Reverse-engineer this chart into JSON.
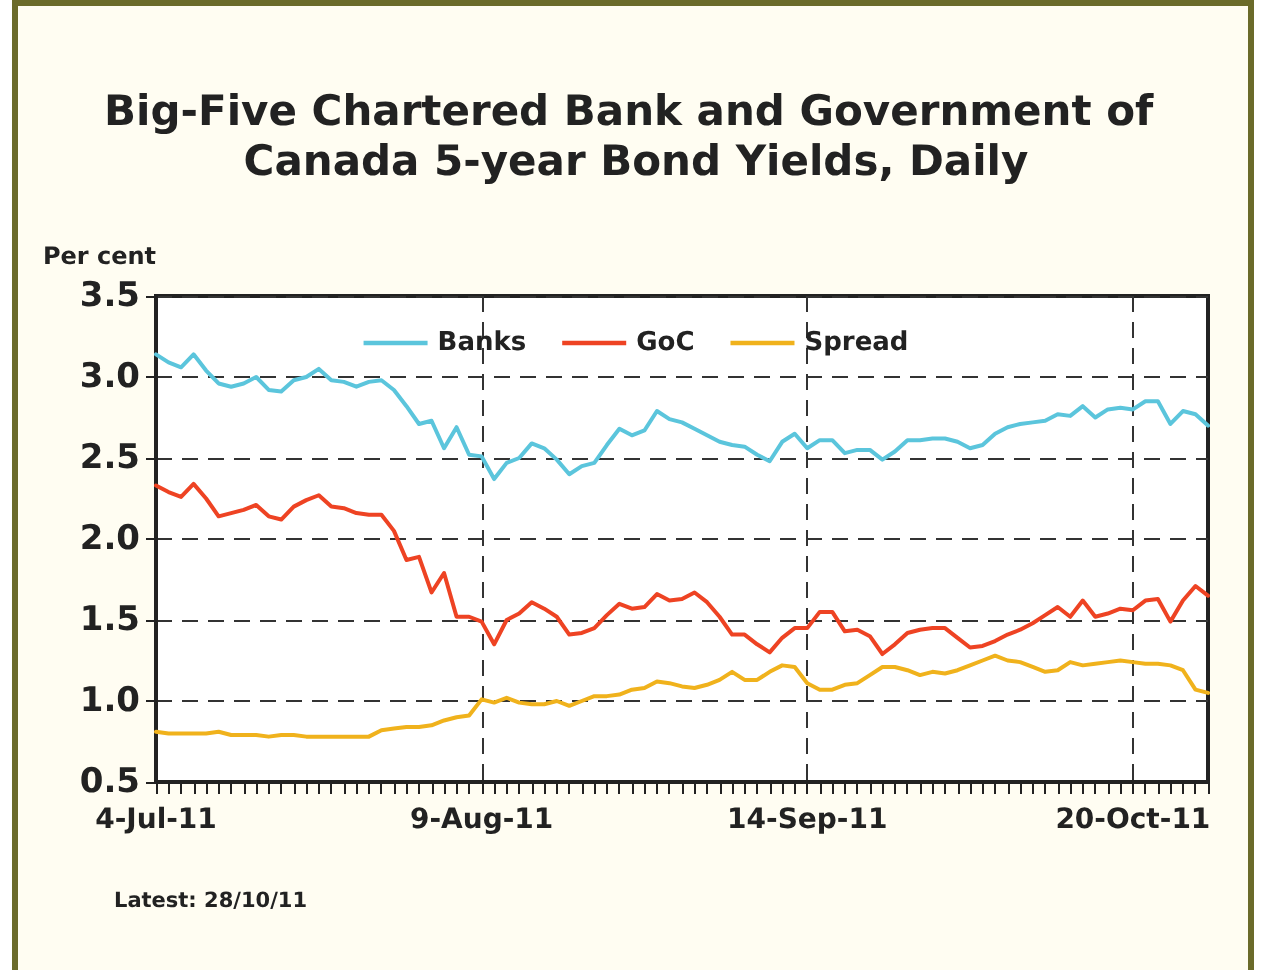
{
  "chart_data": {
    "type": "line",
    "title": "Big-Five Chartered Bank and Government of Canada 5-year Bond Yields, Daily",
    "ylabel": "Per cent",
    "annotations": [
      "Latest: 28/10/11"
    ],
    "categories": [
      "4-Jul-11",
      null,
      null,
      null,
      null,
      null,
      null,
      null,
      null,
      null,
      null,
      null,
      null,
      null,
      null,
      null,
      null,
      null,
      null,
      null,
      null,
      null,
      null,
      null,
      null,
      null,
      "9-Aug-11",
      null,
      null,
      null,
      null,
      null,
      null,
      null,
      null,
      null,
      null,
      null,
      null,
      null,
      null,
      null,
      null,
      null,
      null,
      null,
      null,
      null,
      null,
      null,
      null,
      null,
      "14-Sep-11",
      null,
      null,
      null,
      null,
      null,
      null,
      null,
      null,
      null,
      null,
      null,
      null,
      null,
      null,
      null,
      null,
      null,
      null,
      null,
      null,
      null,
      null,
      null,
      null,
      null,
      "20-Oct-11",
      null,
      null,
      null,
      null,
      null,
      null
    ],
    "series": [
      {
        "name": "Banks",
        "color": "#5bc5dc",
        "values": [
          3.14,
          3.09,
          3.06,
          3.14,
          3.04,
          2.96,
          2.94,
          2.96,
          3.0,
          2.92,
          2.91,
          2.98,
          3.0,
          3.05,
          2.98,
          2.97,
          2.94,
          2.97,
          2.98,
          2.92,
          2.82,
          2.71,
          2.73,
          2.56,
          2.69,
          2.52,
          2.51,
          2.37,
          2.47,
          2.5,
          2.59,
          2.56,
          2.49,
          2.4,
          2.45,
          2.47,
          2.58,
          2.68,
          2.64,
          2.67,
          2.79,
          2.74,
          2.72,
          2.68,
          2.64,
          2.6,
          2.58,
          2.57,
          2.52,
          2.48,
          2.6,
          2.65,
          2.56,
          2.61,
          2.61,
          2.53,
          2.55,
          2.55,
          2.49,
          2.54,
          2.61,
          2.61,
          2.62,
          2.62,
          2.6,
          2.56,
          2.58,
          2.65,
          2.69,
          2.71,
          2.72,
          2.73,
          2.77,
          2.76,
          2.82,
          2.75,
          2.8,
          2.81,
          2.8,
          2.85,
          2.85,
          2.71,
          2.79,
          2.77,
          2.7
        ]
      },
      {
        "name": "GoC",
        "color": "#ee4323",
        "values": [
          2.33,
          2.29,
          2.26,
          2.34,
          2.25,
          2.14,
          2.16,
          2.18,
          2.21,
          2.14,
          2.12,
          2.2,
          2.24,
          2.27,
          2.2,
          2.19,
          2.16,
          2.15,
          2.15,
          2.05,
          1.87,
          1.89,
          1.67,
          1.79,
          1.52,
          1.52,
          1.49,
          1.35,
          1.5,
          1.54,
          1.61,
          1.57,
          1.52,
          1.41,
          1.42,
          1.45,
          1.53,
          1.6,
          1.57,
          1.58,
          1.66,
          1.62,
          1.63,
          1.67,
          1.61,
          1.52,
          1.41,
          1.41,
          1.35,
          1.3,
          1.39,
          1.45,
          1.45,
          1.55,
          1.55,
          1.43,
          1.44,
          1.4,
          1.29,
          1.35,
          1.42,
          1.44,
          1.45,
          1.45,
          1.39,
          1.33,
          1.34,
          1.37,
          1.41,
          1.44,
          1.48,
          1.53,
          1.58,
          1.52,
          1.62,
          1.52,
          1.54,
          1.57,
          1.56,
          1.62,
          1.63,
          1.49,
          1.62,
          1.71,
          1.65
        ]
      },
      {
        "name": "Spread",
        "color": "#f0b21c",
        "values": [
          0.81,
          0.8,
          0.8,
          0.8,
          0.8,
          0.81,
          0.79,
          0.79,
          0.79,
          0.78,
          0.79,
          0.79,
          0.78,
          0.78,
          0.78,
          0.78,
          0.78,
          0.78,
          0.82,
          0.83,
          0.84,
          0.84,
          0.85,
          0.88,
          0.9,
          0.91,
          1.01,
          0.99,
          1.02,
          0.99,
          0.98,
          0.98,
          1.0,
          0.97,
          1.0,
          1.03,
          1.03,
          1.04,
          1.07,
          1.08,
          1.12,
          1.11,
          1.09,
          1.08,
          1.1,
          1.13,
          1.18,
          1.13,
          1.13,
          1.18,
          1.22,
          1.21,
          1.11,
          1.07,
          1.07,
          1.1,
          1.11,
          1.16,
          1.21,
          1.21,
          1.19,
          1.16,
          1.18,
          1.17,
          1.19,
          1.22,
          1.25,
          1.28,
          1.25,
          1.24,
          1.21,
          1.18,
          1.19,
          1.24,
          1.22,
          1.23,
          1.24,
          1.25,
          1.24,
          1.23,
          1.23,
          1.22,
          1.19,
          1.07,
          1.05
        ]
      }
    ],
    "ylim": [
      0.5,
      3.5
    ],
    "yticks": [
      {
        "value": 0.5,
        "label": "0.5"
      },
      {
        "value": 1,
        "label": "1.0"
      },
      {
        "value": 1.5,
        "label": "1.5"
      },
      {
        "value": 2,
        "label": "2.0"
      },
      {
        "value": 2.5,
        "label": "2.5"
      },
      {
        "value": 3,
        "label": "3.0"
      },
      {
        "value": 3.5,
        "label": "3.5"
      }
    ],
    "grid": true,
    "legend": "top",
    "marker": "none",
    "line_style": "solid"
  }
}
